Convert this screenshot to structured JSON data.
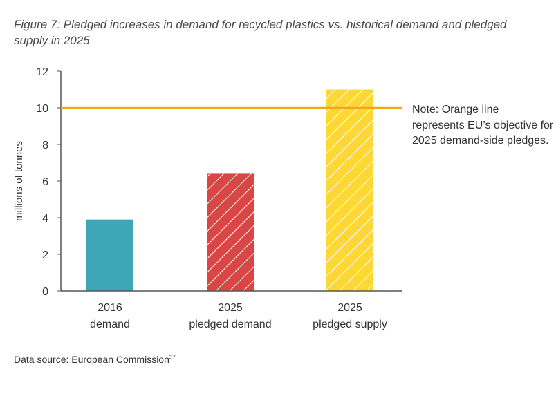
{
  "title": "Figure 7: Pledged increases in demand for recycled plastics vs. historical demand and pledged supply in 2025",
  "note": "Note: Orange line represents EU’s objective for 2025 demand-side pledges.",
  "source_text": "Data source: European Commission",
  "source_ref": "37",
  "colors": {
    "bar_2016": "#3ea6b6",
    "bar_pledged_demand": "#d94646",
    "bar_pledged_supply": "#fdd835",
    "target_line": "#f4a51c",
    "axis": "#555555"
  },
  "chart_data": {
    "type": "bar",
    "categories": [
      [
        "2016",
        "demand"
      ],
      [
        "2025",
        "pledged demand"
      ],
      [
        "2025",
        "pledged supply"
      ]
    ],
    "values": [
      3.9,
      6.4,
      11
    ],
    "patterns": [
      "solid",
      "hatched",
      "hatched"
    ],
    "ylabel": "millions of tonnes",
    "ylim": [
      0,
      12
    ],
    "yticks": [
      0,
      2,
      4,
      6,
      8,
      10,
      12
    ],
    "target_line": {
      "value": 10
    },
    "grid": false
  }
}
